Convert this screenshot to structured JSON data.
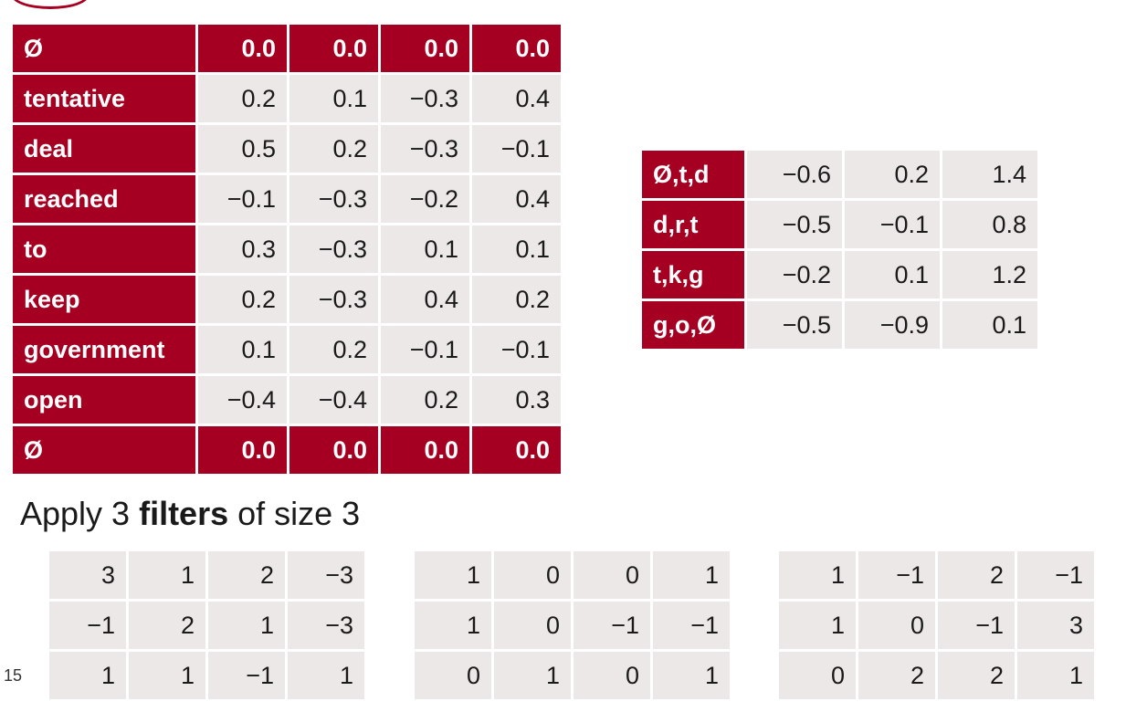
{
  "embedding_table": {
    "rows": [
      {
        "label": "Ø",
        "values": [
          "0.0",
          "0.0",
          "0.0",
          "0.0"
        ],
        "pad": true
      },
      {
        "label": "tentative",
        "values": [
          "0.2",
          "0.1",
          "−0.3",
          "0.4"
        ]
      },
      {
        "label": "deal",
        "values": [
          "0.5",
          "0.2",
          "−0.3",
          "−0.1"
        ]
      },
      {
        "label": "reached",
        "values": [
          "−0.1",
          "−0.3",
          "−0.2",
          "0.4"
        ]
      },
      {
        "label": "to",
        "values": [
          "0.3",
          "−0.3",
          "0.1",
          "0.1"
        ]
      },
      {
        "label": "keep",
        "values": [
          "0.2",
          "−0.3",
          "0.4",
          "0.2"
        ]
      },
      {
        "label": "government",
        "values": [
          "0.1",
          "0.2",
          "−0.1",
          "−0.1"
        ]
      },
      {
        "label": "open",
        "values": [
          "−0.4",
          "−0.4",
          "0.2",
          "0.3"
        ]
      },
      {
        "label": "Ø",
        "values": [
          "0.0",
          "0.0",
          "0.0",
          "0.0"
        ],
        "pad": true
      }
    ]
  },
  "conv_result_table": {
    "rows": [
      {
        "label": "Ø,t,d",
        "values": [
          "−0.6",
          "0.2",
          "1.4"
        ]
      },
      {
        "label": "d,r,t",
        "values": [
          "−0.5",
          "−0.1",
          "0.8"
        ]
      },
      {
        "label": "t,k,g",
        "values": [
          "−0.2",
          "0.1",
          "1.2"
        ]
      },
      {
        "label": "g,o,Ø",
        "values": [
          "−0.5",
          "−0.9",
          "0.1"
        ]
      }
    ]
  },
  "caption": {
    "pre": "Apply 3 ",
    "bold": "filters",
    "post": " of size 3"
  },
  "filters": [
    [
      [
        "3",
        "1",
        "2",
        "−3"
      ],
      [
        "−1",
        "2",
        "1",
        "−3"
      ],
      [
        "1",
        "1",
        "−1",
        "1"
      ]
    ],
    [
      [
        "1",
        "0",
        "0",
        "1"
      ],
      [
        "1",
        "0",
        "−1",
        "−1"
      ],
      [
        "0",
        "1",
        "0",
        "1"
      ]
    ],
    [
      [
        "1",
        "−1",
        "2",
        "−1"
      ],
      [
        "1",
        "0",
        "−1",
        "3"
      ],
      [
        "0",
        "2",
        "2",
        "1"
      ]
    ]
  ],
  "page_number": "15",
  "colors": {
    "accent": "#a50021",
    "cell_bg": "#ece8e7"
  }
}
